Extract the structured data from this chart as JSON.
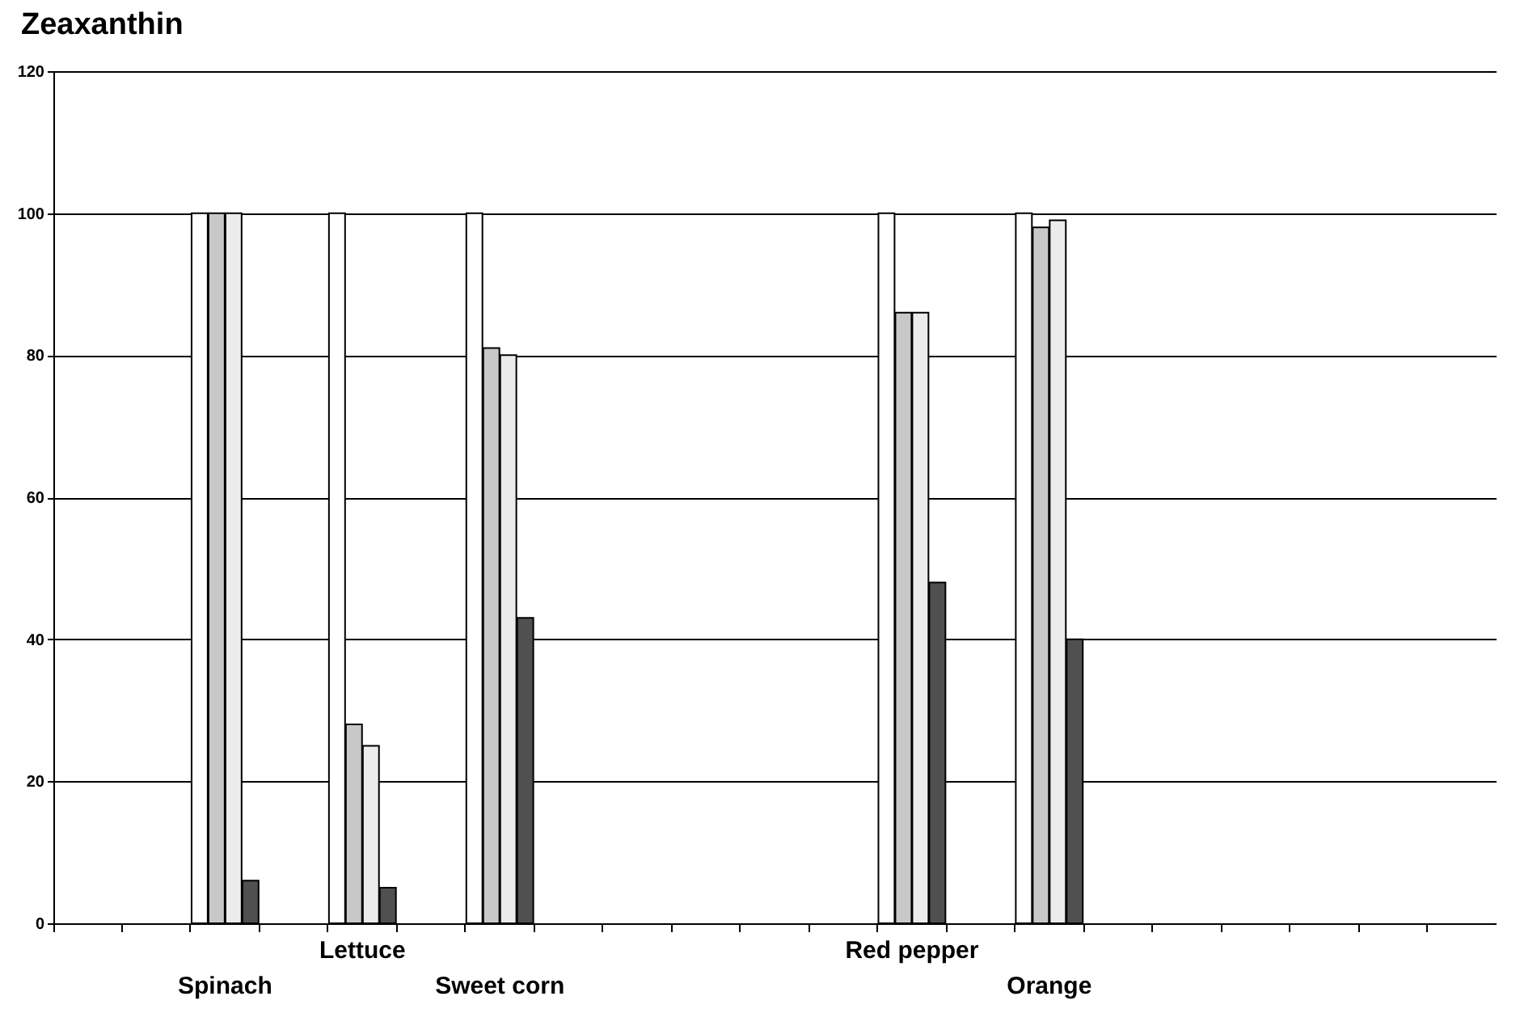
{
  "chart_data": {
    "type": "bar",
    "title": "Zeaxanthin",
    "categories": [
      null,
      null,
      "Spinach",
      null,
      "Lettuce",
      null,
      "Sweet corn",
      null,
      null,
      null,
      null,
      null,
      "Red pepper",
      null,
      "Orange",
      null,
      null,
      null,
      null,
      null,
      null
    ],
    "series": [
      {
        "color": "#ffffff",
        "values": [
          null,
          null,
          100,
          null,
          100,
          null,
          100,
          null,
          null,
          null,
          null,
          null,
          100,
          null,
          100,
          null,
          null,
          null,
          null,
          null,
          null
        ]
      },
      {
        "color": "#c8c8c8",
        "values": [
          null,
          null,
          100,
          null,
          28,
          null,
          81,
          null,
          null,
          null,
          null,
          null,
          86,
          null,
          98,
          null,
          null,
          null,
          null,
          null,
          null
        ]
      },
      {
        "color": "#ebebeb",
        "values": [
          null,
          null,
          100,
          null,
          25,
          null,
          80,
          null,
          null,
          null,
          null,
          null,
          86,
          null,
          99,
          null,
          null,
          null,
          null,
          null,
          null
        ]
      },
      {
        "color": "#505050",
        "values": [
          null,
          null,
          6,
          null,
          5,
          null,
          43,
          null,
          null,
          null,
          null,
          null,
          48,
          null,
          40,
          null,
          null,
          null,
          null,
          null,
          null
        ]
      }
    ],
    "ylim": [
      0,
      120
    ],
    "yticks": [
      0,
      20,
      40,
      60,
      80,
      100,
      120
    ],
    "grid": "y"
  }
}
